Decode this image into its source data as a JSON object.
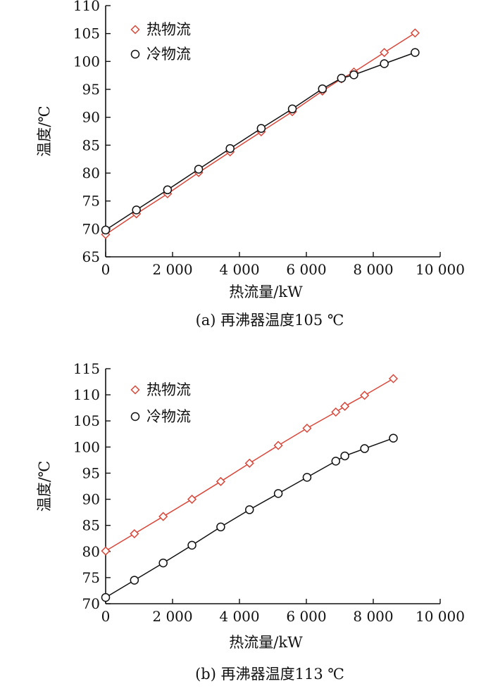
{
  "chart_data": [
    {
      "type": "line",
      "caption": "(a) 再沸器温度105 ℃",
      "xlabel": "热流量/kW",
      "ylabel": "温度/℃",
      "xlim": [
        0,
        10000
      ],
      "ylim": [
        65,
        110
      ],
      "xticks": [
        0,
        2000,
        4000,
        6000,
        8000,
        10000
      ],
      "xtick_labels": [
        "0",
        "2 000",
        "4 000",
        "6 000",
        "8 000",
        "10 000"
      ],
      "yticks": [
        65,
        70,
        75,
        80,
        85,
        90,
        95,
        100,
        105,
        110
      ],
      "ytick_labels": [
        "65",
        "70",
        "75",
        "80",
        "85",
        "90",
        "95",
        "100",
        "105",
        "110"
      ],
      "legend_position": "top-left",
      "grid": false,
      "series": [
        {
          "name": "热物流",
          "marker": "diamond",
          "color": "#d9473a",
          "x": [
            0,
            920,
            1850,
            2780,
            3720,
            4650,
            5580,
            6480,
            7050,
            7420,
            8330,
            9250
          ],
          "y": [
            69.0,
            72.7,
            76.3,
            80.1,
            83.8,
            87.4,
            91.0,
            94.7,
            96.9,
            98.1,
            101.6,
            105.1
          ]
        },
        {
          "name": "冷物流",
          "marker": "circle",
          "color": "#111111",
          "x": [
            0,
            920,
            1850,
            2780,
            3720,
            4650,
            5580,
            6480,
            7050,
            7420,
            8330,
            9250
          ],
          "y": [
            69.8,
            73.4,
            77.0,
            80.7,
            84.4,
            88.0,
            91.5,
            95.1,
            97.0,
            97.6,
            99.6,
            101.6
          ]
        }
      ]
    },
    {
      "type": "line",
      "caption": "(b) 再沸器温度113 ℃",
      "xlabel": "热流量/kW",
      "ylabel": "温度/℃",
      "xlim": [
        0,
        10000
      ],
      "ylim": [
        70,
        115
      ],
      "xticks": [
        0,
        2000,
        4000,
        6000,
        8000,
        10000
      ],
      "xtick_labels": [
        "0",
        "2 000",
        "4 000",
        "6 000",
        "8 000",
        "10 000"
      ],
      "yticks": [
        70,
        75,
        80,
        85,
        90,
        95,
        100,
        105,
        110,
        115
      ],
      "ytick_labels": [
        "70",
        "75",
        "80",
        "85",
        "90",
        "95",
        "100",
        "105",
        "110",
        "115"
      ],
      "legend_position": "top-left",
      "grid": false,
      "series": [
        {
          "name": "热物流",
          "marker": "diamond",
          "color": "#d9473a",
          "x": [
            0,
            860,
            1720,
            2580,
            3440,
            4300,
            5160,
            6020,
            6880,
            7150,
            7740,
            8600
          ],
          "y": [
            80.1,
            83.4,
            86.7,
            90.0,
            93.4,
            96.9,
            100.3,
            103.6,
            106.7,
            107.8,
            109.9,
            113.1
          ]
        },
        {
          "name": "冷物流",
          "marker": "circle",
          "color": "#111111",
          "x": [
            0,
            860,
            1720,
            2580,
            3440,
            4300,
            5160,
            6020,
            6880,
            7150,
            7740,
            8600
          ],
          "y": [
            71.2,
            74.5,
            77.8,
            81.2,
            84.7,
            88.0,
            91.1,
            94.2,
            97.3,
            98.3,
            99.7,
            101.7
          ]
        }
      ]
    }
  ]
}
